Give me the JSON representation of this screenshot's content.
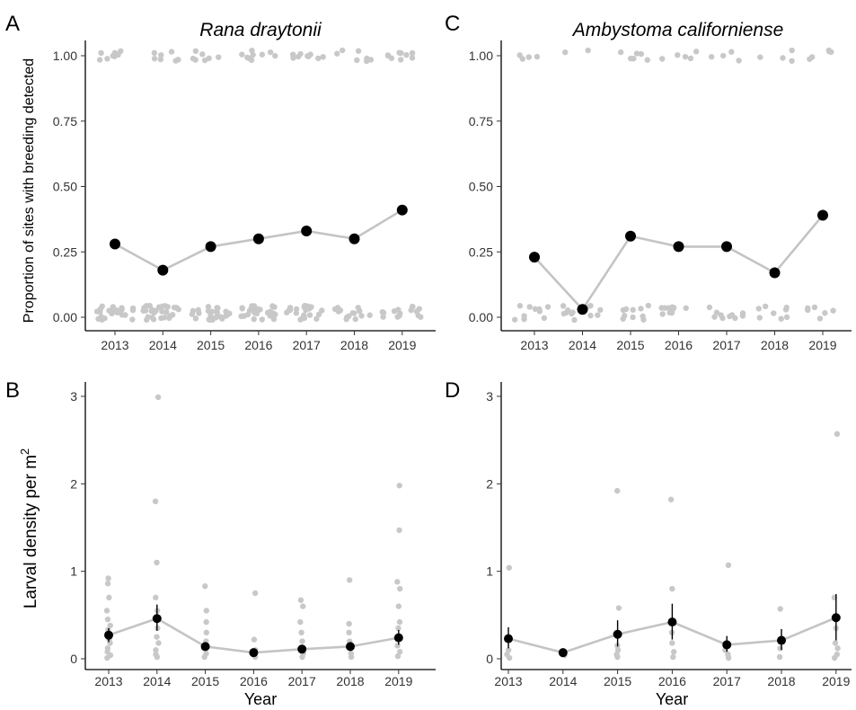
{
  "panels_text": {
    "A": {
      "letter": "A",
      "title": "Rana draytonii",
      "ylabel": "Proportion of sites with breeding detected"
    },
    "B": {
      "letter": "B",
      "ylabel": "Larval density per m",
      "ylabel_sup": "2",
      "xlabel": "Year"
    },
    "C": {
      "letter": "C",
      "title": "Ambystoma californiense"
    },
    "D": {
      "letter": "D",
      "xlabel": "Year"
    }
  },
  "colors": {
    "mean": "#000000",
    "line": "#c4c4c4",
    "raw_points": "#c8c8c8",
    "axis": "#000000"
  },
  "chart_data": [
    {
      "id": "A",
      "type": "line",
      "title": "Rana draytonii",
      "xlabel": "",
      "ylabel": "Proportion of sites with breeding detected",
      "categories": [
        "2013",
        "2014",
        "2015",
        "2016",
        "2017",
        "2018",
        "2019"
      ],
      "yticks": [
        0.0,
        0.25,
        0.5,
        0.75,
        1.0
      ],
      "ytick_labels": [
        "0.00",
        "0.25",
        "0.50",
        "0.75",
        "1.00"
      ],
      "ylim": [
        -0.04,
        1.06
      ],
      "series": [
        {
          "values": [
            0.28,
            0.18,
            0.27,
            0.3,
            0.33,
            0.3,
            0.41
          ]
        }
      ],
      "raw_points": {
        "description": "jittered 0/1 site outcomes",
        "counts_at_1": [
          8,
          7,
          7,
          9,
          9,
          7,
          9
        ],
        "counts_at_0": [
          24,
          30,
          25,
          26,
          22,
          18,
          15
        ]
      }
    },
    {
      "id": "C",
      "type": "line",
      "title": "Ambystoma californiense",
      "xlabel": "",
      "ylabel": "",
      "categories": [
        "2013",
        "2014",
        "2015",
        "2016",
        "2017",
        "2018",
        "2019"
      ],
      "yticks": [
        0.0,
        0.25,
        0.5,
        0.75,
        1.0
      ],
      "ytick_labels": [
        "0.00",
        "0.25",
        "0.50",
        "0.75",
        "1.00"
      ],
      "ylim": [
        -0.04,
        1.06
      ],
      "series": [
        {
          "values": [
            0.23,
            0.03,
            0.31,
            0.27,
            0.27,
            0.17,
            0.39
          ]
        }
      ],
      "raw_points": {
        "description": "jittered 0/1 site outcomes",
        "counts_at_1": [
          4,
          2,
          6,
          5,
          4,
          4,
          5
        ],
        "counts_at_0": [
          10,
          12,
          10,
          10,
          10,
          8,
          6
        ]
      }
    },
    {
      "id": "B",
      "type": "line",
      "title": "",
      "xlabel": "Year",
      "ylabel": "Larval density per m2",
      "categories": [
        "2013",
        "2014",
        "2015",
        "2016",
        "2017",
        "2018",
        "2019"
      ],
      "yticks": [
        0,
        1,
        2,
        3
      ],
      "ytick_labels": [
        "0",
        "1",
        "2",
        "3"
      ],
      "ylim": [
        -0.1,
        3.2
      ],
      "series": [
        {
          "values": [
            0.27,
            0.46,
            0.14,
            0.07,
            0.11,
            0.14,
            0.24
          ],
          "error_low": [
            0.19,
            0.32,
            0.1,
            0.05,
            0.07,
            0.09,
            0.16
          ],
          "error_high": [
            0.35,
            0.62,
            0.19,
            0.1,
            0.15,
            0.19,
            0.33
          ]
        }
      ],
      "raw_points": {
        "description": "site-level densities",
        "values_by_year": [
          [
            0.92,
            0.86,
            0.7,
            0.55,
            0.45,
            0.38,
            0.33,
            0.28,
            0.22,
            0.18,
            0.12,
            0.08,
            0.04,
            0.01
          ],
          [
            2.99,
            1.8,
            1.1,
            0.7,
            0.55,
            0.35,
            0.25,
            0.18,
            0.1,
            0.05,
            0.02
          ],
          [
            0.83,
            0.55,
            0.42,
            0.3,
            0.2,
            0.12,
            0.06,
            0.02
          ],
          [
            0.75,
            0.22,
            0.1,
            0.05,
            0.02
          ],
          [
            0.67,
            0.6,
            0.42,
            0.3,
            0.2,
            0.12,
            0.06,
            0.02
          ],
          [
            0.9,
            0.4,
            0.3,
            0.2,
            0.12,
            0.06,
            0.02
          ],
          [
            1.98,
            1.47,
            0.88,
            0.8,
            0.6,
            0.42,
            0.35,
            0.25,
            0.15,
            0.08,
            0.03
          ]
        ]
      }
    },
    {
      "id": "D",
      "type": "line",
      "title": "",
      "xlabel": "Year",
      "ylabel": "",
      "categories": [
        "2013",
        "2014",
        "2015",
        "2016",
        "2017",
        "2018",
        "2019"
      ],
      "yticks": [
        0,
        1,
        2,
        3
      ],
      "ytick_labels": [
        "0",
        "1",
        "2",
        "3"
      ],
      "ylim": [
        -0.1,
        3.2
      ],
      "series": [
        {
          "values": [
            0.23,
            0.07,
            0.28,
            0.42,
            0.16,
            0.21,
            0.47
          ],
          "error_low": [
            0.12,
            0.05,
            0.14,
            0.22,
            0.08,
            0.1,
            0.21
          ],
          "error_high": [
            0.36,
            0.09,
            0.44,
            0.63,
            0.26,
            0.34,
            0.74
          ]
        }
      ],
      "raw_points": {
        "description": "site-level densities",
        "values_by_year": [
          [
            1.04,
            0.1,
            0.05,
            0.01
          ],
          [
            0.04
          ],
          [
            1.92,
            0.58,
            0.15,
            0.1,
            0.05,
            0.02
          ],
          [
            1.82,
            0.8,
            0.3,
            0.18,
            0.08,
            0.02
          ],
          [
            1.07,
            0.1,
            0.05,
            0.01
          ],
          [
            0.57,
            0.12,
            0.02
          ],
          [
            2.57,
            0.7,
            0.35,
            0.18,
            0.12,
            0.05,
            0.01
          ]
        ]
      }
    }
  ]
}
